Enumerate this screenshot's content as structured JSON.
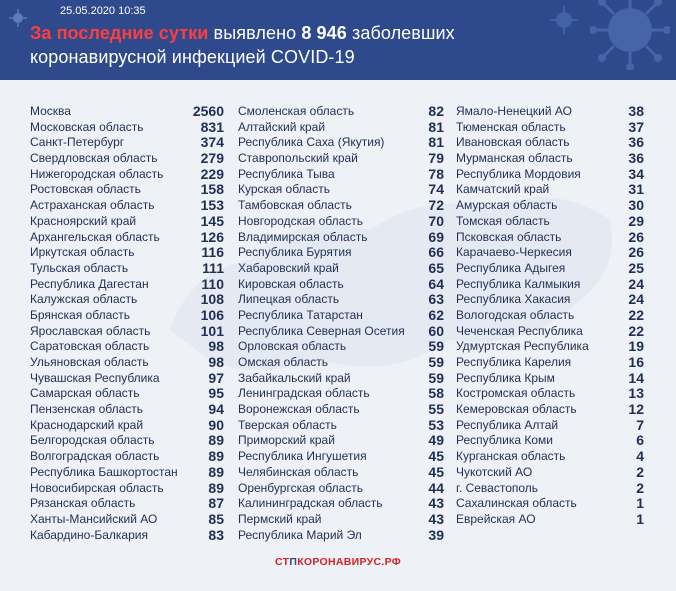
{
  "header": {
    "date": "25.05.2020 10:35",
    "title_prefix": "За последние сутки",
    "title_middle": " выявлено ",
    "title_count": "8 946",
    "title_suffix": " заболевших",
    "title_line2": "коронавирусной инфекцией COVID-19"
  },
  "footer": {
    "brand_red1": "СТ",
    "brand_mid": "П",
    "brand_red2": "КОРОНАВИРУС.РФ"
  },
  "columns": [
    [
      {
        "name": "Москва",
        "value": "2560"
      },
      {
        "name": "Московская область",
        "value": "831"
      },
      {
        "name": "Санкт-Петербург",
        "value": "374"
      },
      {
        "name": "Свердловская область",
        "value": "279"
      },
      {
        "name": "Нижегородская область",
        "value": "229"
      },
      {
        "name": "Ростовская область",
        "value": "158"
      },
      {
        "name": "Астраханская область",
        "value": "153"
      },
      {
        "name": "Красноярский край",
        "value": "145"
      },
      {
        "name": "Архангельская область",
        "value": "126"
      },
      {
        "name": "Иркутская область",
        "value": "116"
      },
      {
        "name": "Тульская область",
        "value": "111"
      },
      {
        "name": "Республика Дагестан",
        "value": "110"
      },
      {
        "name": "Калужская область",
        "value": "108"
      },
      {
        "name": "Брянская область",
        "value": "106"
      },
      {
        "name": "Ярославская область",
        "value": "101"
      },
      {
        "name": "Саратовская область",
        "value": "98"
      },
      {
        "name": "Ульяновская область",
        "value": "98"
      },
      {
        "name": "Чувашская Республика",
        "value": "97"
      },
      {
        "name": "Самарская область",
        "value": "95"
      },
      {
        "name": "Пензенская область",
        "value": "94"
      },
      {
        "name": "Краснодарский край",
        "value": "90"
      },
      {
        "name": "Белгородская область",
        "value": "89"
      },
      {
        "name": "Волгоградская область",
        "value": "89"
      },
      {
        "name": "Республика Башкортостан",
        "value": "89"
      },
      {
        "name": "Новосибирская область",
        "value": "89"
      },
      {
        "name": "Рязанская область",
        "value": "87"
      },
      {
        "name": "Ханты-Мансийский АО",
        "value": "85"
      },
      {
        "name": "Кабардино-Балкария",
        "value": "83"
      }
    ],
    [
      {
        "name": "Смоленская область",
        "value": "82"
      },
      {
        "name": "Алтайский край",
        "value": "81"
      },
      {
        "name": "Республика Саха (Якутия)",
        "value": "81"
      },
      {
        "name": "Ставропольский край",
        "value": "79"
      },
      {
        "name": "Республика Тыва",
        "value": "78"
      },
      {
        "name": "Курская область",
        "value": "74"
      },
      {
        "name": "Тамбовская область",
        "value": "72"
      },
      {
        "name": "Новгородская область",
        "value": "70"
      },
      {
        "name": "Владимирская область",
        "value": "69"
      },
      {
        "name": "Республика Бурятия",
        "value": "66"
      },
      {
        "name": "Хабаровский край",
        "value": "65"
      },
      {
        "name": "Кировская область",
        "value": "64"
      },
      {
        "name": "Липецкая область",
        "value": "63"
      },
      {
        "name": "Республика Татарстан",
        "value": "62"
      },
      {
        "name": "Республика Северная Осетия",
        "value": "60"
      },
      {
        "name": "Орловская область",
        "value": "59"
      },
      {
        "name": "Омская область",
        "value": "59"
      },
      {
        "name": "Забайкальский край",
        "value": "59"
      },
      {
        "name": "Ленинградская область",
        "value": "58"
      },
      {
        "name": "Воронежская область",
        "value": "55"
      },
      {
        "name": "Тверская область",
        "value": "53"
      },
      {
        "name": "Приморский край",
        "value": "49"
      },
      {
        "name": "Республика Ингушетия",
        "value": "45"
      },
      {
        "name": "Челябинская область",
        "value": "45"
      },
      {
        "name": "Оренбургская область",
        "value": "44"
      },
      {
        "name": "Калининградская область",
        "value": "43"
      },
      {
        "name": "Пермский край",
        "value": "43"
      },
      {
        "name": "Республика Марий Эл",
        "value": "39"
      }
    ],
    [
      {
        "name": "Ямало-Ненецкий АО",
        "value": "38"
      },
      {
        "name": "Тюменская область",
        "value": "37"
      },
      {
        "name": "Ивановская область",
        "value": "36"
      },
      {
        "name": "Мурманская область",
        "value": "36"
      },
      {
        "name": "Республика Мордовия",
        "value": "34"
      },
      {
        "name": "Камчатский край",
        "value": "31"
      },
      {
        "name": "Амурская область",
        "value": "30"
      },
      {
        "name": "Томская область",
        "value": "29"
      },
      {
        "name": "Псковская область",
        "value": "26"
      },
      {
        "name": "Карачаево-Черкесия",
        "value": "26"
      },
      {
        "name": "Республика Адыгея",
        "value": "25"
      },
      {
        "name": "Республика Калмыкия",
        "value": "24"
      },
      {
        "name": "Республика Хакасия",
        "value": "24"
      },
      {
        "name": "Вологодская область",
        "value": "22"
      },
      {
        "name": "Чеченская Республика",
        "value": "22"
      },
      {
        "name": "Удмуртская Республика",
        "value": "19"
      },
      {
        "name": "Республика Карелия",
        "value": "16"
      },
      {
        "name": "Республика Крым",
        "value": "14"
      },
      {
        "name": "Костромская область",
        "value": "13"
      },
      {
        "name": "Кемеровская область",
        "value": "12"
      },
      {
        "name": "Республика Алтай",
        "value": "7"
      },
      {
        "name": "Республика Коми",
        "value": "6"
      },
      {
        "name": "Курганская область",
        "value": "4"
      },
      {
        "name": "Чукотский АО",
        "value": "2"
      },
      {
        "name": "г. Севастополь",
        "value": "2"
      },
      {
        "name": "Сахалинская область",
        "value": "1"
      },
      {
        "name": "Еврейская АО",
        "value": "1"
      }
    ]
  ],
  "colors": {
    "header_bg": "#2e4a8c",
    "accent_red": "#ff3d3d",
    "text": "#1f2f55",
    "background": "#eef1f6"
  }
}
